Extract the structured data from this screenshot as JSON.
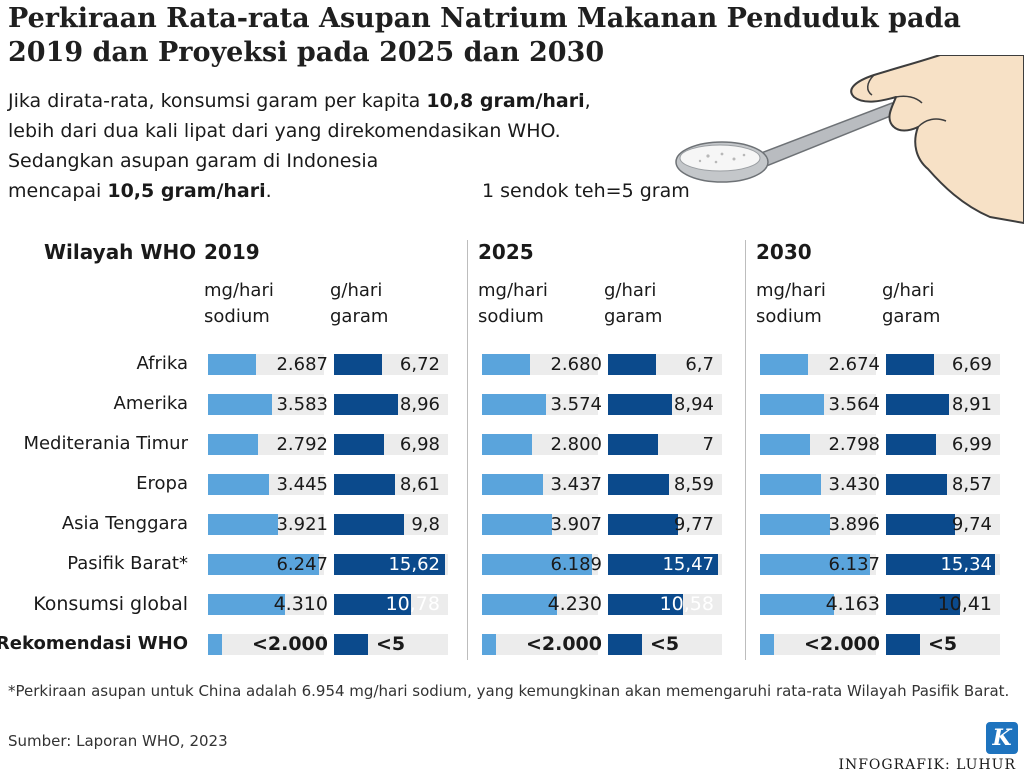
{
  "title": "Perkiraan Rata-rata Asupan Natrium Makanan Penduduk pada 2019 dan Proyeksi pada 2025 dan 2030",
  "intro": {
    "line1_pre": "Jika dirata-rata, konsumsi garam per kapita ",
    "line1_bold": "10,8 gram/hari",
    "line1_post": ",",
    "line2": "lebih dari dua kali lipat dari yang direkomendasikan WHO.",
    "line3": "Sedangkan asupan garam di Indonesia",
    "line4_pre": "mencapai ",
    "line4_bold": "10,5 gram/hari",
    "line4_post": "."
  },
  "spoon_note": "1 sendok teh=5 gram",
  "illustration": "hand-holding-spoon-of-salt",
  "region_header": "Wilayah WHO",
  "colors": {
    "sodium": "#5aa4dc",
    "salt": "#0b4a8c",
    "track": "#ececec"
  },
  "chart_data": {
    "type": "bar",
    "categories": [
      "Afrika",
      "Amerika",
      "Mediterania Timur",
      "Eropa",
      "Asia Tenggara",
      "Pasifik Barat*",
      "Konsumsi global",
      "Rekomendasi WHO"
    ],
    "category_style": [
      "normal",
      "normal",
      "normal",
      "normal",
      "normal",
      "normal",
      "medium",
      "bold"
    ],
    "units": [
      {
        "line1": "mg/hari",
        "line2": "sodium"
      },
      {
        "line1": "g/hari",
        "line2": "garam"
      }
    ],
    "years": [
      {
        "year": "2019",
        "sodium": {
          "values": [
            2687,
            3583,
            2792,
            3445,
            3921,
            6247,
            4310,
            2000
          ],
          "labels": [
            "2.687",
            "3.583",
            "2.792",
            "3.445",
            "3.921",
            "6.247",
            "4.310",
            "<2.000"
          ]
        },
        "salt": {
          "values": [
            6.72,
            8.96,
            6.98,
            8.61,
            9.8,
            15.62,
            10.78,
            5
          ],
          "labels": [
            "6,72",
            "8,96",
            "6,98",
            "8,61",
            "9,8",
            "15,62",
            "10,78",
            "<5"
          ]
        }
      },
      {
        "year": "2025",
        "sodium": {
          "values": [
            2680,
            3574,
            2800,
            3437,
            3907,
            6189,
            4230,
            2000
          ],
          "labels": [
            "2.680",
            "3.574",
            "2.800",
            "3.437",
            "3.907",
            "6.189",
            "4.230",
            "<2.000"
          ]
        },
        "salt": {
          "values": [
            6.7,
            8.94,
            7,
            8.59,
            9.77,
            15.47,
            10.58,
            5
          ],
          "labels": [
            "6,7",
            "8,94",
            "7",
            "8,59",
            "9,77",
            "15,47",
            "10,58",
            "<5"
          ]
        }
      },
      {
        "year": "2030",
        "sodium": {
          "values": [
            2674,
            3564,
            2798,
            3430,
            3896,
            6137,
            4163,
            2000
          ],
          "labels": [
            "2.674",
            "3.564",
            "2.798",
            "3.430",
            "3.896",
            "6.137",
            "4.163",
            "<2.000"
          ]
        },
        "salt": {
          "values": [
            6.69,
            8.91,
            6.99,
            8.57,
            9.74,
            15.34,
            10.41,
            5
          ],
          "labels": [
            "6,69",
            "8,91",
            "6,99",
            "8,57",
            "9,74",
            "15,34",
            "10,41",
            "<5"
          ]
        }
      }
    ]
  },
  "footnote": "*Perkiraan asupan untuk China adalah 6.954 mg/hari sodium, yang kemungkinan akan memengaruhi rata-rata Wilayah Pasifik Barat.",
  "source": "Sumber: Laporan WHO, 2023",
  "credit": "INFOGRAFIK: LUHUR",
  "logo_letter": "K"
}
